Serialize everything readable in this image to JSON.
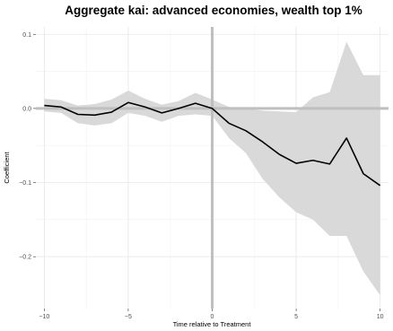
{
  "chart_data": {
    "type": "line",
    "title": "Aggregate kai: advanced economies, wealth top 1%",
    "xlabel": "Time relative to Treatment",
    "ylabel": "Coefficient",
    "xlim": [
      -10.5,
      10.5
    ],
    "ylim": [
      -0.27,
      0.11
    ],
    "x_ticks": [
      -10,
      -5,
      0,
      5,
      10
    ],
    "x_tick_labels": [
      "−10",
      "−5",
      "0",
      "5",
      "10"
    ],
    "y_ticks": [
      0.1,
      0.0,
      -0.1,
      -0.2
    ],
    "y_tick_labels": [
      "0.1",
      "0.0",
      "−0.1",
      "−0.2"
    ],
    "grid": true,
    "reference_lines": {
      "x": 0,
      "y": 0
    },
    "series": [
      {
        "x": [
          -10,
          -9,
          -8,
          -7,
          -6,
          -5,
          -4,
          -3,
          -2,
          -1,
          0,
          1,
          2,
          3,
          4,
          5,
          6,
          7,
          8,
          9,
          10
        ],
        "values": [
          0.004,
          0.002,
          -0.008,
          -0.009,
          -0.005,
          0.008,
          0.002,
          -0.006,
          0.0,
          0.007,
          0.0,
          -0.02,
          -0.03,
          -0.045,
          -0.062,
          -0.074,
          -0.07,
          -0.075,
          -0.04,
          -0.088,
          -0.104
        ],
        "lower": [
          -0.004,
          -0.006,
          -0.02,
          -0.023,
          -0.02,
          -0.006,
          -0.01,
          -0.018,
          -0.01,
          -0.008,
          -0.01,
          -0.04,
          -0.06,
          -0.095,
          -0.12,
          -0.14,
          -0.15,
          -0.172,
          -0.172,
          -0.22,
          -0.252
        ],
        "upper": [
          0.013,
          0.011,
          0.004,
          0.006,
          0.012,
          0.024,
          0.013,
          0.005,
          0.01,
          0.021,
          0.012,
          0.002,
          0.0,
          -0.003,
          -0.004,
          -0.005,
          0.015,
          0.022,
          0.09,
          0.045,
          0.045
        ],
        "line_color": "#000000",
        "band_color": "#d9d9d9"
      }
    ]
  }
}
